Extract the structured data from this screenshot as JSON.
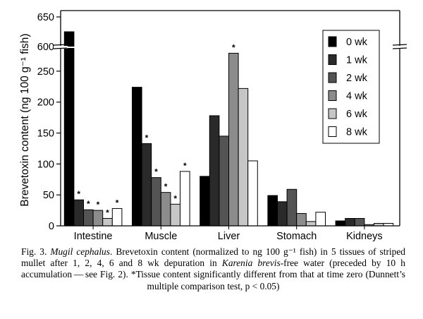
{
  "chart_data": {
    "type": "bar",
    "ylabel": "Brevetoxin content (ng 100 g⁻¹ fish)",
    "xlabel": "",
    "title": "",
    "broken_axis": true,
    "ylim_lower": [
      0,
      300
    ],
    "ylim_upper": [
      600,
      650
    ],
    "yticks": [
      0,
      50,
      100,
      150,
      200,
      250,
      600,
      650
    ],
    "categories": [
      "Intestine",
      "Muscle",
      "Liver",
      "Stomach",
      "Kidneys"
    ],
    "series": [
      {
        "name": "0 wk",
        "color": "#000000",
        "values": [
          625,
          224,
          80,
          49,
          8
        ]
      },
      {
        "name": "1 wk",
        "color": "#2a2a2a",
        "values": [
          42,
          133,
          178,
          39,
          12
        ]
      },
      {
        "name": "2 wk",
        "color": "#545454",
        "values": [
          26,
          78,
          145,
          59,
          12
        ]
      },
      {
        "name": "4 wk",
        "color": "#8c8c8c",
        "values": [
          25,
          54,
          279,
          20,
          2
        ]
      },
      {
        "name": "6 wk",
        "color": "#c6c6c6",
        "values": [
          12,
          35,
          222,
          7,
          4
        ]
      },
      {
        "name": "8 wk",
        "color": "#ffffff",
        "values": [
          28,
          88,
          105,
          22,
          4
        ]
      }
    ],
    "significant": [
      [
        false,
        false,
        false,
        false,
        false
      ],
      [
        true,
        true,
        false,
        false,
        false
      ],
      [
        true,
        true,
        false,
        false,
        false
      ],
      [
        true,
        true,
        true,
        false,
        false
      ],
      [
        true,
        true,
        false,
        false,
        false
      ],
      [
        true,
        true,
        false,
        false,
        false
      ]
    ],
    "significance_marker": "*",
    "legend_position": "top-right",
    "grid": false
  },
  "caption": {
    "fig_label": "Fig. 3. ",
    "species": "Mugil cephalus",
    "part1": ". Brevetoxin content (normalized to ng 100 g⁻¹ fish) in 5 tissues of striped mullet after 1, 2, 4, 6 and 8 wk depuration in ",
    "organism": "Karenia brevis",
    "part2": "-free water (preceded by 10 h accumulation — see Fig. 2). *Tissue content significantly different from that at time zero (Dunnett’s multiple comparison test, p < 0.05)"
  }
}
